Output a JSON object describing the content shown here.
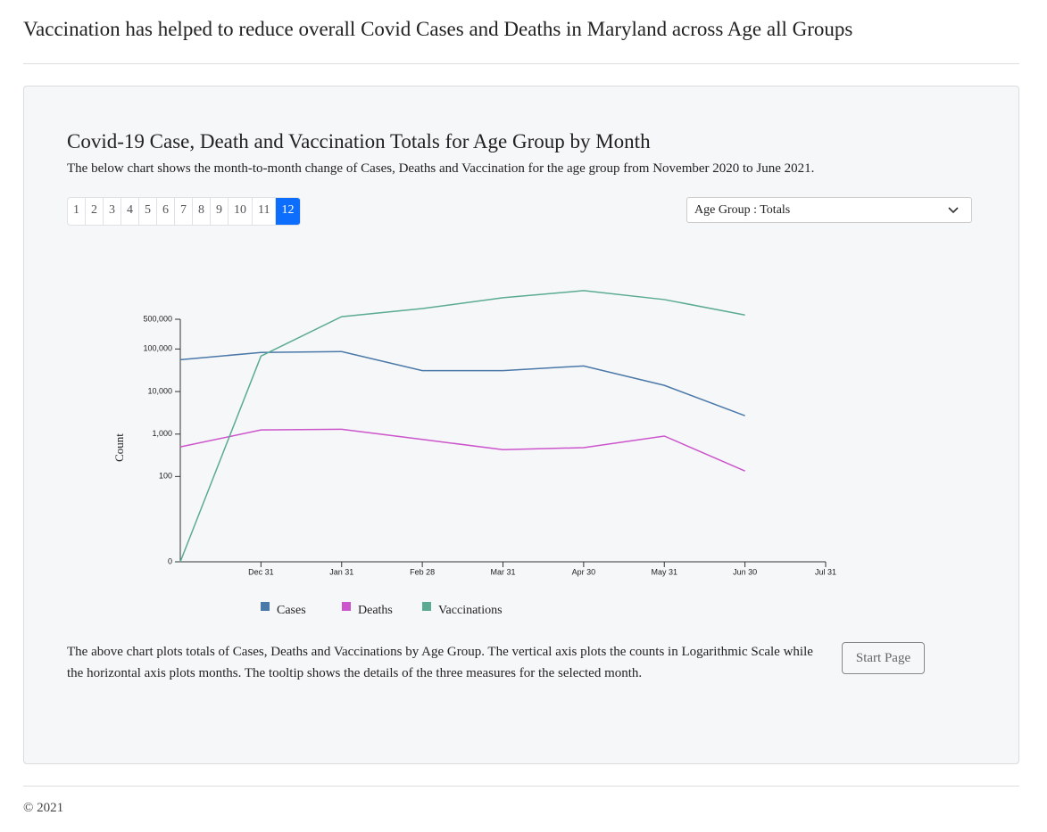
{
  "header": {
    "title": "Vaccination has helped to reduce overall Covid Cases and Deaths in Maryland across Age all Groups"
  },
  "controls": {
    "pages": [
      "1",
      "2",
      "3",
      "4",
      "5",
      "6",
      "7",
      "8",
      "9",
      "10",
      "11",
      "12"
    ],
    "active_page": 12,
    "dropdown": "Age Group : Totals"
  },
  "chart_data": {
    "type": "line",
    "title": "Covid-19 Case, Death and Vaccination Totals for Age Group by Month",
    "subtitle": "The below chart shows the month-to-month change of Cases, Deaths and Vaccination for the age group from November 2020 to June 2021.",
    "y_label": "Count",
    "y_scale": "log",
    "categories": [
      null,
      "Dec 31",
      "Jan 31",
      "Feb 28",
      "Mar 31",
      "Apr 30",
      "May 31",
      "Jun 30",
      "Jul 31"
    ],
    "series": [
      {
        "name": "Cases",
        "color": "#4a78a8",
        "values": [
          56000,
          83000,
          87000,
          31000,
          31000,
          40000,
          14000,
          2700,
          null
        ]
      },
      {
        "name": "Deaths",
        "color": "#cc55cc",
        "values": [
          500,
          1250,
          1300,
          750,
          430,
          480,
          900,
          135,
          null
        ]
      },
      {
        "name": "Vaccinations",
        "color": "#5aab91",
        "values": [
          0,
          68000,
          575000,
          890000,
          1600000,
          2350000,
          1450000,
          630000,
          null
        ]
      }
    ],
    "ylim": [
      0,
      500000
    ],
    "yticks": [
      0,
      {
        "value": 100,
        "label": "100"
      },
      {
        "value": 1000,
        "label": "1,000"
      },
      {
        "value": 10000,
        "label": "10,000"
      },
      {
        "value": 100000,
        "label": "100,000"
      },
      {
        "value": 500000,
        "label": "500,000"
      }
    ]
  },
  "description": "The above chart plots totals of Cases, Deaths and Vaccinations by Age Group. The vertical axis plots the counts in Logarithmic Scale while the horizontal axis plots months. The tooltip shows the details of the three measures for the selected month.",
  "button": "Start Page",
  "footer": "© 2021"
}
